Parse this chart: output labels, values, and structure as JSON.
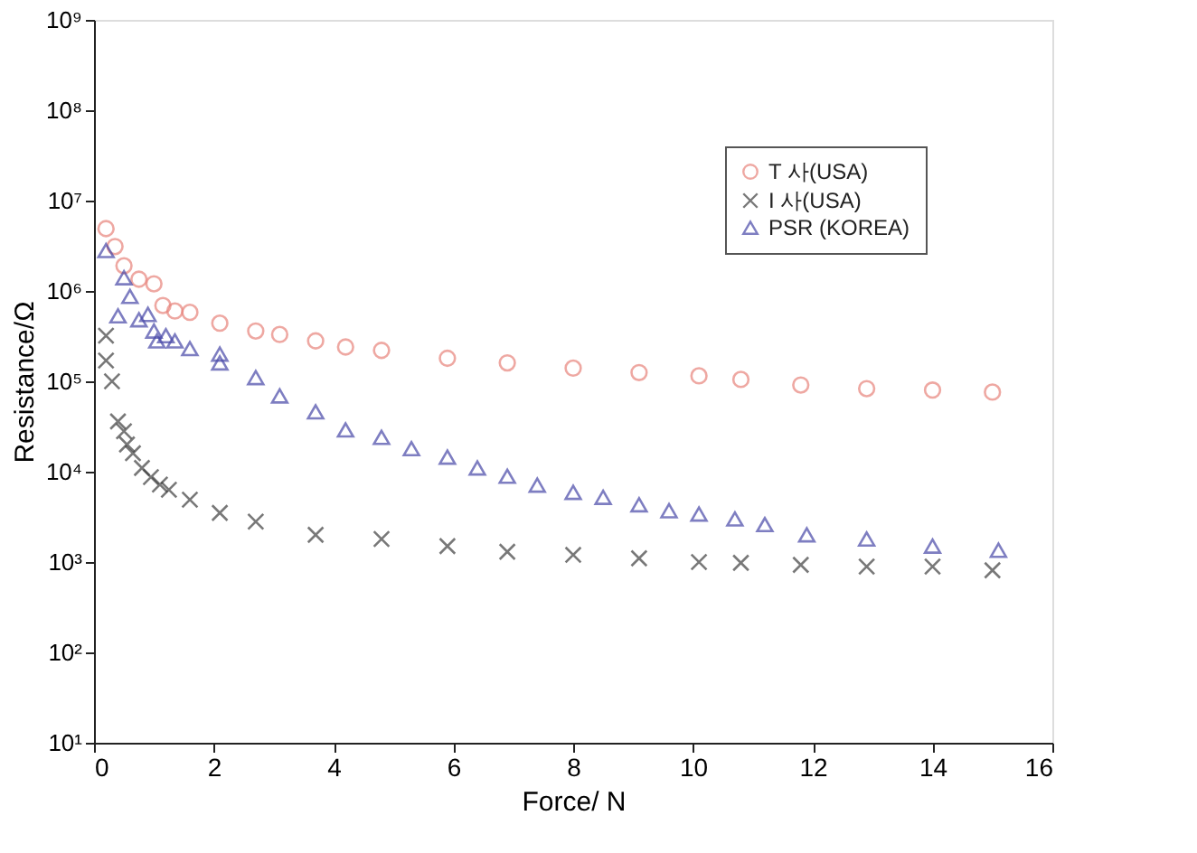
{
  "chart_data": {
    "type": "scatter",
    "xlabel": "Force/ N",
    "ylabel": "Resistance/Ω",
    "xlim": [
      0,
      16
    ],
    "xticks": [
      0,
      2,
      4,
      6,
      8,
      10,
      12,
      14,
      16
    ],
    "ylim": [
      10,
      1000000000
    ],
    "yticks": [
      {
        "value": 10,
        "label": "10¹"
      },
      {
        "value": 100,
        "label": "10²"
      },
      {
        "value": 1000,
        "label": "10³"
      },
      {
        "value": 10000,
        "label": "10⁴"
      },
      {
        "value": 100000,
        "label": "10⁵"
      },
      {
        "value": 1000000,
        "label": "10⁶"
      },
      {
        "value": 10000000,
        "label": "10⁷"
      },
      {
        "value": 100000000,
        "label": "10⁸"
      },
      {
        "value": 1000000000,
        "label": "10⁹"
      }
    ],
    "log": "y",
    "grid": false,
    "legend": "top right",
    "series": [
      {
        "name": "T 사(USA)",
        "color": "#e8847c",
        "marker": "circle",
        "x": [
          0.2,
          0.35,
          0.5,
          0.75,
          1.0,
          1.15,
          1.35,
          1.6,
          2.1,
          2.7,
          3.1,
          3.7,
          4.2,
          4.8,
          5.9,
          6.9,
          8.0,
          9.1,
          10.1,
          10.8,
          11.8,
          12.9,
          14.0,
          15.0
        ],
        "values": [
          4900000,
          3100000,
          1900000,
          1350000,
          1200000,
          690000,
          600000,
          580000,
          440000,
          360000,
          330000,
          280000,
          240000,
          220000,
          180000,
          160000,
          140000,
          125000,
          115000,
          105000,
          91000,
          83000,
          80000,
          76000
        ]
      },
      {
        "name": "I 사(USA)",
        "color": "#404040",
        "marker": "cross",
        "x": [
          0.2,
          0.2,
          0.3,
          0.4,
          0.5,
          0.55,
          0.65,
          0.8,
          0.95,
          1.1,
          1.25,
          1.6,
          2.1,
          2.7,
          3.7,
          4.8,
          5.9,
          6.9,
          8.0,
          9.1,
          10.1,
          10.8,
          11.8,
          12.9,
          14.0,
          15.0
        ],
        "values": [
          320000,
          170000,
          100000,
          36000,
          28000,
          20000,
          16000,
          11000,
          8700,
          7200,
          6300,
          4900,
          3500,
          2800,
          2000,
          1800,
          1500,
          1300,
          1200,
          1100,
          1000,
          980,
          930,
          890,
          890,
          810
        ]
      },
      {
        "name": "PSR (KOREA)",
        "color": "#4848a8",
        "marker": "triangle",
        "x": [
          0.2,
          0.4,
          0.5,
          0.6,
          0.75,
          0.9,
          1.0,
          1.05,
          1.2,
          1.35,
          1.6,
          2.1,
          2.1,
          2.7,
          3.1,
          3.7,
          4.2,
          4.8,
          5.3,
          5.9,
          6.4,
          6.9,
          7.4,
          8.0,
          8.5,
          9.1,
          9.6,
          10.1,
          10.7,
          11.2,
          11.9,
          12.9,
          14.0,
          15.1
        ],
        "values": [
          2800000,
          530000,
          1400000,
          870000,
          480000,
          550000,
          360000,
          280000,
          320000,
          280000,
          230000,
          200000,
          160000,
          110000,
          69000,
          46000,
          29000,
          24000,
          18000,
          14500,
          11000,
          8900,
          7100,
          5900,
          5200,
          4300,
          3700,
          3400,
          3000,
          2600,
          2000,
          1800,
          1500,
          1350
        ]
      }
    ]
  }
}
